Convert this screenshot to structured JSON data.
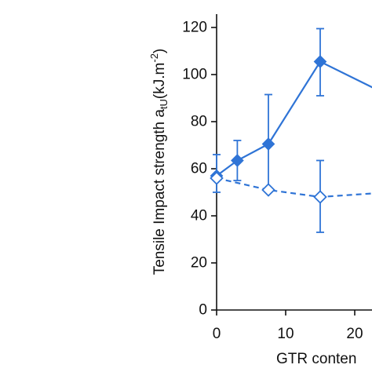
{
  "chart_data": {
    "type": "line",
    "ylabel": {
      "main": "Tensile Impact strength a",
      "sub": "tU",
      "unit_open": "(kJ.m",
      "unit_sup": "-2",
      "unit_close": ")"
    },
    "xlabel": "GTR conten",
    "xlim": [
      0,
      25
    ],
    "ylim": [
      0,
      120
    ],
    "x_ticks": [
      0,
      10,
      20
    ],
    "x_tick_labels": [
      "0",
      "10",
      "20"
    ],
    "y_ticks": [
      0,
      20,
      40,
      60,
      80,
      100,
      120
    ],
    "y_tick_labels": [
      "0",
      "20",
      "40",
      "60",
      "80",
      "100",
      "120"
    ],
    "grid": false,
    "colors": {
      "series": "#2f74d6",
      "axis": "#111111"
    },
    "series": [
      {
        "style": "solid",
        "marker": "filled-diamond",
        "points": [
          {
            "x": 0,
            "y": 57,
            "err_low": 50,
            "err_high": 66
          },
          {
            "x": 3,
            "y": 63.5,
            "err_low": 55,
            "err_high": 72
          },
          {
            "x": 7.5,
            "y": 70.5,
            "err_low": 50,
            "err_high": 91.5
          },
          {
            "x": 15,
            "y": 105.5,
            "err_low": 91,
            "err_high": 119.5
          },
          {
            "x": 25,
            "y": 91,
            "err_low": null,
            "err_high": null
          }
        ]
      },
      {
        "style": "dashed",
        "marker": "open-diamond",
        "points": [
          {
            "x": 0,
            "y": 56,
            "err_low": null,
            "err_high": null
          },
          {
            "x": 7.5,
            "y": 51,
            "err_low": null,
            "err_high": null
          },
          {
            "x": 15,
            "y": 48,
            "err_low": 33,
            "err_high": 63.5
          },
          {
            "x": 25,
            "y": 50,
            "err_low": null,
            "err_high": null
          }
        ]
      }
    ]
  }
}
